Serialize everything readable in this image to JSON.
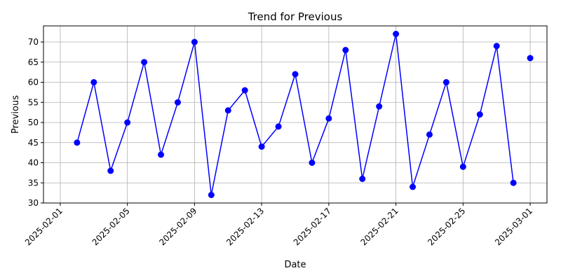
{
  "chart_data": {
    "type": "line",
    "title": "Trend for Previous",
    "xlabel": "Date",
    "ylabel": "Previous",
    "x_ticks": [
      "2025-02-01",
      "2025-02-05",
      "2025-02-09",
      "2025-02-13",
      "2025-02-17",
      "2025-02-21",
      "2025-02-25",
      "2025-03-01"
    ],
    "y_ticks": [
      30,
      35,
      40,
      45,
      50,
      55,
      60,
      65,
      70
    ],
    "xlim": [
      "2025-01-31",
      "2025-03-02"
    ],
    "ylim": [
      30,
      74
    ],
    "grid": true,
    "series": [
      {
        "color": "#0000ff",
        "marker": "circle",
        "x": [
          "2025-02-02",
          "2025-02-03",
          "2025-02-04",
          "2025-02-05",
          "2025-02-06",
          "2025-02-07",
          "2025-02-08",
          "2025-02-09",
          "2025-02-10",
          "2025-02-11",
          "2025-02-12",
          "2025-02-13",
          "2025-02-14",
          "2025-02-15",
          "2025-02-16",
          "2025-02-17",
          "2025-02-18",
          "2025-02-19",
          "2025-02-20",
          "2025-02-21",
          "2025-02-22",
          "2025-02-23",
          "2025-02-24",
          "2025-02-25",
          "2025-02-26",
          "2025-02-27",
          "2025-02-28",
          "2025-03-01"
        ],
        "y": [
          45,
          60,
          38,
          50,
          65,
          42,
          55,
          70,
          32,
          53,
          58,
          44,
          49,
          62,
          40,
          51,
          68,
          36,
          54,
          72,
          34,
          47,
          60,
          39,
          52,
          69,
          35,
          66
        ],
        "connected_count": 27
      }
    ]
  }
}
